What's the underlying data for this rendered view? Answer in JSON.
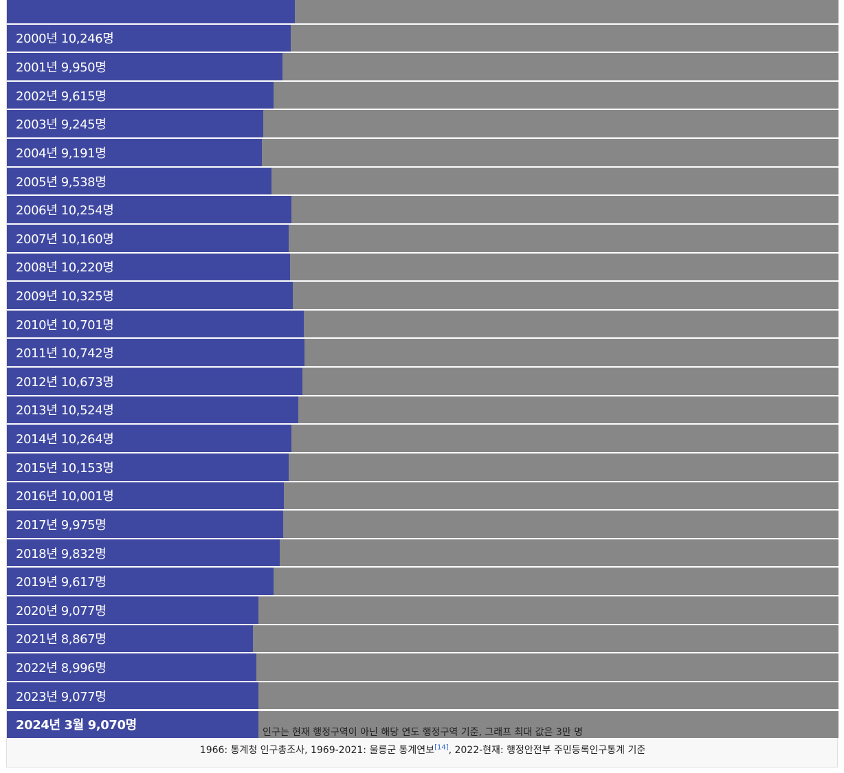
{
  "chart_data": {
    "type": "bar",
    "orientation": "horizontal",
    "unit": "명",
    "xlim": [
      0,
      30000
    ],
    "bar_color": "#3f48a0",
    "track_color": "#878787",
    "rows": [
      {
        "category": "",
        "value": 10400,
        "label": ""
      },
      {
        "category": "2000년",
        "value": 10246,
        "label": "2000년 10,246명"
      },
      {
        "category": "2001년",
        "value": 9950,
        "label": "2001년 9,950명"
      },
      {
        "category": "2002년",
        "value": 9615,
        "label": "2002년 9,615명"
      },
      {
        "category": "2003년",
        "value": 9245,
        "label": "2003년 9,245명"
      },
      {
        "category": "2004년",
        "value": 9191,
        "label": "2004년 9,191명"
      },
      {
        "category": "2005년",
        "value": 9538,
        "label": "2005년 9,538명"
      },
      {
        "category": "2006년",
        "value": 10254,
        "label": "2006년 10,254명"
      },
      {
        "category": "2007년",
        "value": 10160,
        "label": "2007년 10,160명"
      },
      {
        "category": "2008년",
        "value": 10220,
        "label": "2008년 10,220명"
      },
      {
        "category": "2009년",
        "value": 10325,
        "label": "2009년 10,325명"
      },
      {
        "category": "2010년",
        "value": 10701,
        "label": "2010년 10,701명"
      },
      {
        "category": "2011년",
        "value": 10742,
        "label": "2011년 10,742명"
      },
      {
        "category": "2012년",
        "value": 10673,
        "label": "2012년 10,673명"
      },
      {
        "category": "2013년",
        "value": 10524,
        "label": "2013년 10,524명"
      },
      {
        "category": "2014년",
        "value": 10264,
        "label": "2014년 10,264명"
      },
      {
        "category": "2015년",
        "value": 10153,
        "label": "2015년 10,153명"
      },
      {
        "category": "2016년",
        "value": 10001,
        "label": "2016년 10,001명"
      },
      {
        "category": "2017년",
        "value": 9975,
        "label": "2017년 9,975명"
      },
      {
        "category": "2018년",
        "value": 9832,
        "label": "2018년 9,832명"
      },
      {
        "category": "2019년",
        "value": 9617,
        "label": "2019년 9,617명"
      },
      {
        "category": "2020년",
        "value": 9077,
        "label": "2020년 9,077명"
      },
      {
        "category": "2021년",
        "value": 8867,
        "label": "2021년 8,867명"
      },
      {
        "category": "2022년",
        "value": 8996,
        "label": "2022년 8,996명"
      },
      {
        "category": "2023년",
        "value": 9077,
        "label": "2023년 9,077명"
      },
      {
        "category": "2024년 3월",
        "value": 9070,
        "label": "2024년 3월 9,070명",
        "bold": true
      }
    ]
  },
  "caption": {
    "line1": "인구는 현재 행정구역이 아닌 해당 연도 행정구역 기준, 그래프 최대 값은 3만 명",
    "line2_before": "1966: 통계청 인구총조사, 1969-2021: 울릉군 통계연보",
    "line2_ref": "[14]",
    "line2_after": ", 2022-현재: 행정안전부 주민등록인구통계 기준"
  }
}
